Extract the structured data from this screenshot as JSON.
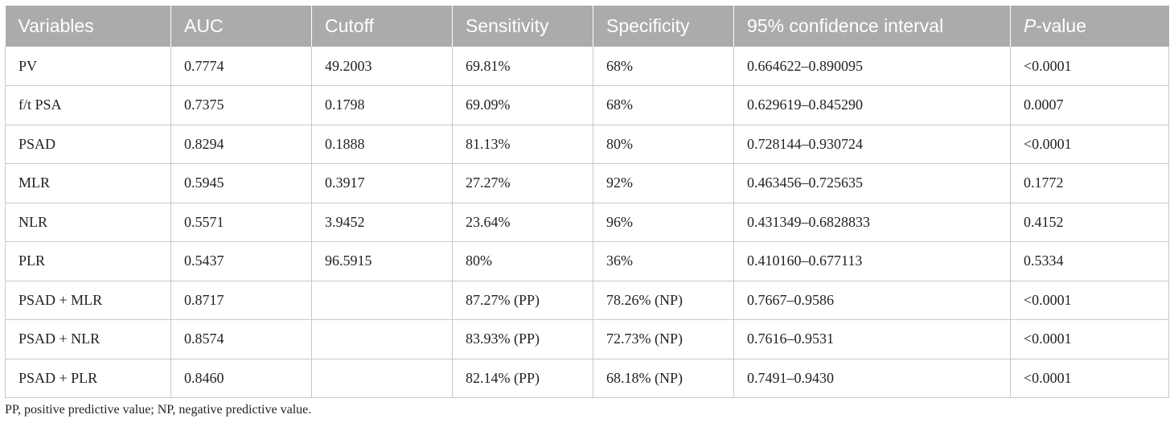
{
  "table": {
    "headers": {
      "variables": "Variables",
      "auc": "AUC",
      "cutoff": "Cutoff",
      "sensitivity": "Sensitivity",
      "specificity": "Specificity",
      "ci": "95% confidence interval",
      "p_italic": "P",
      "p_rest": "-value"
    },
    "rows": [
      {
        "variable": "PV",
        "auc": "0.7774",
        "cutoff": "49.2003",
        "sensitivity": "69.81%",
        "specificity": "68%",
        "ci": "0.664622–0.890095",
        "p": "<0.0001"
      },
      {
        "variable": "f/t PSA",
        "auc": "0.7375",
        "cutoff": "0.1798",
        "sensitivity": "69.09%",
        "specificity": "68%",
        "ci": "0.629619–0.845290",
        "p": "0.0007"
      },
      {
        "variable": "PSAD",
        "auc": "0.8294",
        "cutoff": "0.1888",
        "sensitivity": "81.13%",
        "specificity": "80%",
        "ci": "0.728144–0.930724",
        "p": "<0.0001"
      },
      {
        "variable": "MLR",
        "auc": "0.5945",
        "cutoff": "0.3917",
        "sensitivity": "27.27%",
        "specificity": "92%",
        "ci": "0.463456–0.725635",
        "p": "0.1772"
      },
      {
        "variable": "NLR",
        "auc": "0.5571",
        "cutoff": "3.9452",
        "sensitivity": "23.64%",
        "specificity": "96%",
        "ci": "0.431349–0.6828833",
        "p": "0.4152"
      },
      {
        "variable": "PLR",
        "auc": "0.5437",
        "cutoff": "96.5915",
        "sensitivity": "80%",
        "specificity": "36%",
        "ci": "0.410160–0.677113",
        "p": "0.5334"
      },
      {
        "variable": "PSAD + MLR",
        "auc": "0.8717",
        "cutoff": "",
        "sensitivity": "87.27% (PP)",
        "specificity": "78.26% (NP)",
        "ci": "0.7667–0.9586",
        "p": "<0.0001"
      },
      {
        "variable": "PSAD + NLR",
        "auc": "0.8574",
        "cutoff": "",
        "sensitivity": "83.93% (PP)",
        "specificity": "72.73% (NP)",
        "ci": "0.7616–0.9531",
        "p": "<0.0001"
      },
      {
        "variable": "PSAD + PLR",
        "auc": "0.8460",
        "cutoff": "",
        "sensitivity": "82.14% (PP)",
        "specificity": "68.18% (NP)",
        "ci": "0.7491–0.9430",
        "p": "<0.0001"
      }
    ]
  },
  "footnote": "PP, positive predictive value; NP, negative predictive value.",
  "colors": {
    "header_bg": "#ababab",
    "header_text": "#ffffff",
    "grid": "#c8c8c8",
    "body_text": "#222222"
  }
}
